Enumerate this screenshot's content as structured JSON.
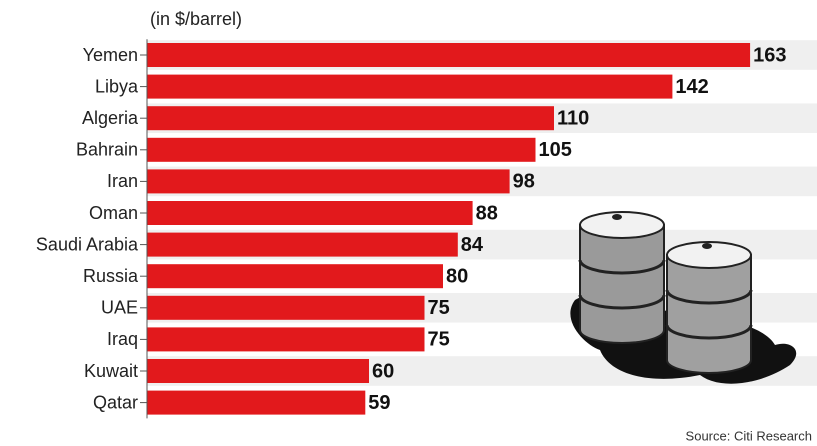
{
  "chart_data": {
    "type": "bar",
    "orientation": "horizontal",
    "subtitle": "(in $/barrel)",
    "categories": [
      "Yemen",
      "Libya",
      "Algeria",
      "Bahrain",
      "Iran",
      "Oman",
      "Saudi Arabia",
      "Russia",
      "UAE",
      "Iraq",
      "Kuwait",
      "Qatar"
    ],
    "values": [
      163,
      142,
      110,
      105,
      98,
      88,
      84,
      80,
      75,
      75,
      60,
      59
    ],
    "color": "#e2191c",
    "source": "Source: Citi Research"
  }
}
